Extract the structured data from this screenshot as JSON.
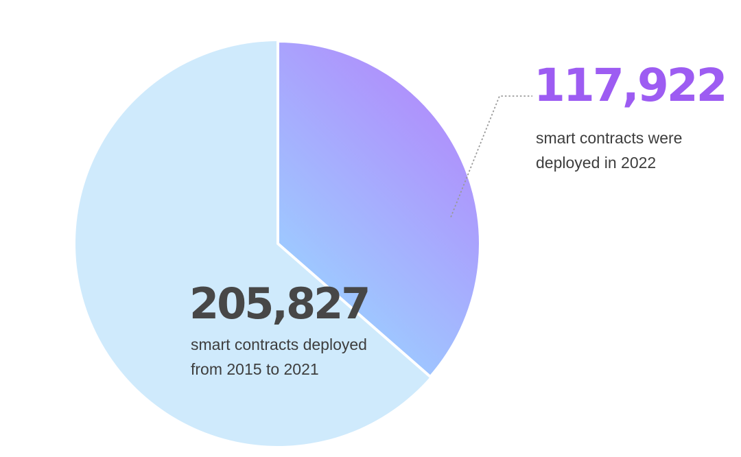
{
  "chart_data": {
    "type": "pie",
    "slices": [
      {
        "value": 117922,
        "value_label": "117,922",
        "caption": [
          "smart contracts were",
          "deployed in 2022"
        ],
        "gradient": [
          "#9ec8ff",
          "#b57cfb"
        ]
      },
      {
        "value": 205827,
        "value_label": "205,827",
        "caption": [
          "smart contracts deployed",
          "from 2015 to 2021"
        ],
        "color": "#cfeafc"
      }
    ],
    "start_angle_deg": 0,
    "direction": "clockwise",
    "exploded_slice_index": 0,
    "legend": "none"
  },
  "colors": {
    "highlight_number": "#9d5cf2",
    "primary_number": "#474747",
    "caption_text": "#3d3d3d",
    "leader_line": "#9a9a9a"
  }
}
